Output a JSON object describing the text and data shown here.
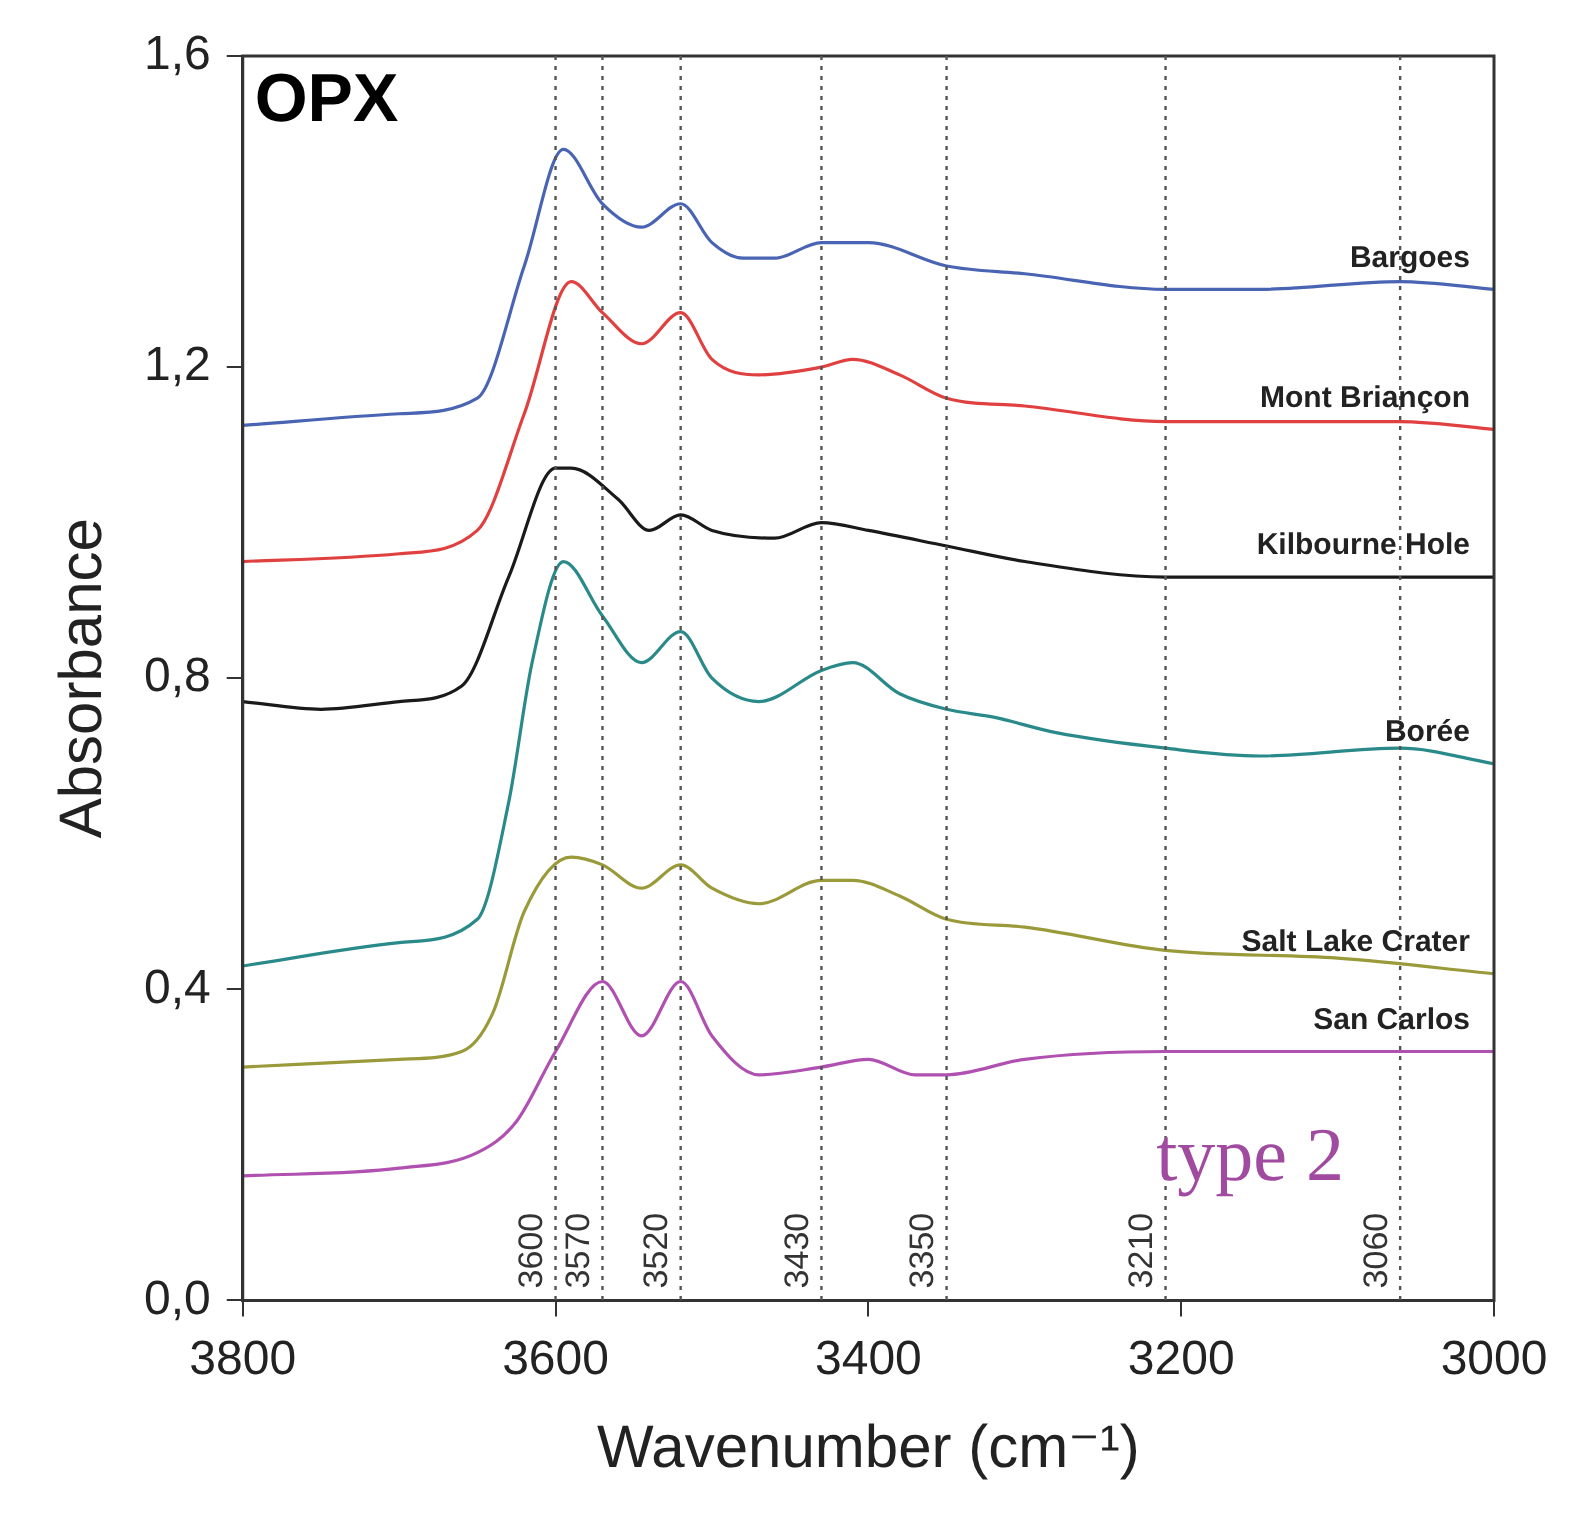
{
  "chart_data": {
    "type": "line",
    "title": "OPX",
    "xlabel": "Wavenumber (cm⁻¹)",
    "ylabel": "Absorbance",
    "xlim": [
      3800,
      3000
    ],
    "xticks": [
      3800,
      3600,
      3400,
      3200,
      3000
    ],
    "ylim": [
      0,
      1.6
    ],
    "yticks": [
      {
        "value": 0,
        "label": "0,0"
      },
      {
        "value": 0.4,
        "label": "0,4"
      },
      {
        "value": 0.8,
        "label": "0,8"
      },
      {
        "value": 1.2,
        "label": "1,2"
      },
      {
        "value": 1.6,
        "label": "1,6"
      }
    ],
    "grid": false,
    "legend": false,
    "marker": "none",
    "line_style": "solid",
    "ref_lines": [
      {
        "axis": "x",
        "value": 3600,
        "label": "3600",
        "line_style": "dotted",
        "color": "#555555"
      },
      {
        "axis": "x",
        "value": 3570,
        "label": "3570",
        "line_style": "dotted",
        "color": "#555555"
      },
      {
        "axis": "x",
        "value": 3520,
        "label": "3520",
        "line_style": "dotted",
        "color": "#555555"
      },
      {
        "axis": "x",
        "value": 3430,
        "label": "3430",
        "line_style": "dotted",
        "color": "#555555"
      },
      {
        "axis": "x",
        "value": 3350,
        "label": "3350",
        "line_style": "dotted",
        "color": "#555555"
      },
      {
        "axis": "x",
        "value": 3210,
        "label": "3210",
        "line_style": "dotted",
        "color": "#555555"
      },
      {
        "axis": "x",
        "value": 3060,
        "label": "3060",
        "line_style": "dotted",
        "color": "#555555"
      }
    ],
    "annotations": [
      "type 2"
    ],
    "series": [
      {
        "name": "Bargoes",
        "color": "#4a64b4",
        "x": [
          3800,
          3700,
          3650,
          3620,
          3595,
          3570,
          3545,
          3520,
          3500,
          3480,
          3460,
          3430,
          3400,
          3350,
          3300,
          3210,
          3150,
          3060,
          3000
        ],
        "values": [
          1.125,
          1.14,
          1.16,
          1.33,
          1.48,
          1.41,
          1.38,
          1.41,
          1.36,
          1.34,
          1.34,
          1.36,
          1.36,
          1.33,
          1.32,
          1.3,
          1.3,
          1.31,
          1.3
        ]
      },
      {
        "name": "Mont Briançon",
        "color": "#e04040",
        "x": [
          3800,
          3700,
          3650,
          3620,
          3590,
          3570,
          3545,
          3520,
          3500,
          3470,
          3430,
          3410,
          3380,
          3350,
          3300,
          3210,
          3150,
          3060,
          3000
        ],
        "values": [
          0.95,
          0.96,
          0.99,
          1.14,
          1.31,
          1.27,
          1.23,
          1.27,
          1.21,
          1.19,
          1.2,
          1.21,
          1.19,
          1.16,
          1.15,
          1.13,
          1.13,
          1.13,
          1.12
        ]
      },
      {
        "name": "Kilbourne Hole",
        "color": "#1a1a1a",
        "x": [
          3800,
          3750,
          3700,
          3660,
          3630,
          3600,
          3590,
          3560,
          3540,
          3520,
          3500,
          3460,
          3430,
          3400,
          3350,
          3300,
          3210,
          3100,
          3000
        ],
        "values": [
          0.77,
          0.76,
          0.77,
          0.79,
          0.93,
          1.07,
          1.07,
          1.03,
          0.99,
          1.01,
          0.99,
          0.98,
          1.0,
          0.99,
          0.97,
          0.95,
          0.93,
          0.93,
          0.93
        ]
      },
      {
        "name": "Borée",
        "color": "#2a8a8a",
        "x": [
          3800,
          3700,
          3650,
          3630,
          3615,
          3595,
          3570,
          3545,
          3520,
          3500,
          3470,
          3430,
          3410,
          3380,
          3350,
          3320,
          3280,
          3210,
          3150,
          3060,
          3000
        ],
        "values": [
          0.43,
          0.46,
          0.49,
          0.64,
          0.82,
          0.95,
          0.88,
          0.82,
          0.86,
          0.8,
          0.77,
          0.81,
          0.82,
          0.78,
          0.76,
          0.75,
          0.73,
          0.71,
          0.7,
          0.71,
          0.69
        ]
      },
      {
        "name": "Salt Lake Crater",
        "color": "#9a9a3a",
        "x": [
          3800,
          3700,
          3660,
          3640,
          3620,
          3590,
          3570,
          3545,
          3520,
          3500,
          3470,
          3430,
          3410,
          3380,
          3350,
          3300,
          3210,
          3100,
          3000
        ],
        "values": [
          0.3,
          0.31,
          0.32,
          0.37,
          0.5,
          0.57,
          0.56,
          0.53,
          0.56,
          0.53,
          0.51,
          0.54,
          0.54,
          0.52,
          0.49,
          0.48,
          0.45,
          0.44,
          0.42
        ]
      },
      {
        "name": "San Carlos",
        "color": "#b050b0",
        "x": [
          3800,
          3700,
          3650,
          3625,
          3600,
          3570,
          3545,
          3520,
          3500,
          3470,
          3430,
          3400,
          3370,
          3350,
          3300,
          3210,
          3100,
          3000
        ],
        "values": [
          0.16,
          0.17,
          0.19,
          0.23,
          0.32,
          0.41,
          0.34,
          0.41,
          0.34,
          0.29,
          0.3,
          0.31,
          0.29,
          0.29,
          0.31,
          0.32,
          0.32,
          0.32
        ]
      }
    ]
  }
}
